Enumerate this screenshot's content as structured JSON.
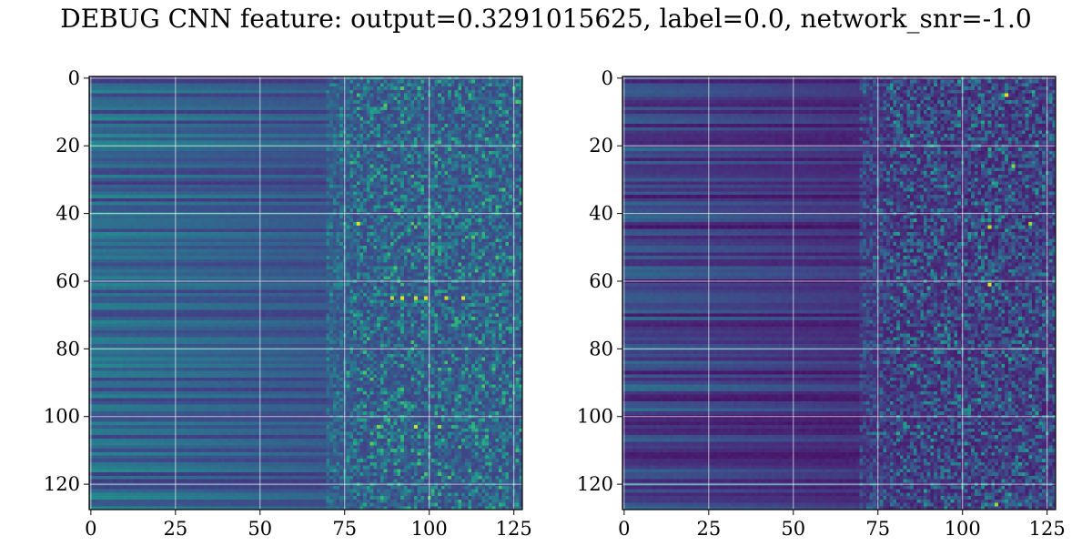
{
  "figure": {
    "title": "DEBUG CNN feature: output=0.3291015625, label=0.0, network_snr=-1.0"
  },
  "chart_data": [
    {
      "type": "heatmap",
      "panel": "left",
      "title": "",
      "xlabel": "",
      "ylabel": "",
      "rows": 128,
      "cols": 128,
      "xlim": [
        -0.5,
        127.5
      ],
      "ylim": [
        127.5,
        -0.5
      ],
      "x_ticks": [
        0,
        25,
        50,
        75,
        100,
        125
      ],
      "y_ticks": [
        0,
        20,
        40,
        60,
        80,
        100,
        120
      ],
      "x_tick_labels": [
        "0",
        "25",
        "50",
        "75",
        "100",
        "125"
      ],
      "y_tick_labels": [
        "0",
        "20",
        "40",
        "60",
        "80",
        "100",
        "120"
      ],
      "grid": true,
      "colormap": "viridis",
      "value_range": [
        0,
        1
      ],
      "description_of_values": "smooth row bands for x<70, noisy texture for x>=75",
      "hotspots": [
        {
          "x": 79,
          "y": 43,
          "value": 0.95
        },
        {
          "x": 89,
          "y": 65,
          "value": 0.9
        },
        {
          "x": 92,
          "y": 65,
          "value": 0.95
        },
        {
          "x": 96,
          "y": 65,
          "value": 0.92
        },
        {
          "x": 99,
          "y": 65,
          "value": 0.95
        },
        {
          "x": 105,
          "y": 65,
          "value": 0.9
        },
        {
          "x": 110,
          "y": 65,
          "value": 0.95
        },
        {
          "x": 96,
          "y": 103,
          "value": 0.92
        },
        {
          "x": 103,
          "y": 103,
          "value": 0.85
        },
        {
          "x": 85,
          "y": 103,
          "value": 0.8
        }
      ]
    },
    {
      "type": "heatmap",
      "panel": "right",
      "title": "",
      "xlabel": "",
      "ylabel": "",
      "rows": 128,
      "cols": 128,
      "xlim": [
        -0.5,
        127.5
      ],
      "ylim": [
        127.5,
        -0.5
      ],
      "x_ticks": [
        0,
        25,
        50,
        75,
        100,
        125
      ],
      "y_ticks": [
        0,
        20,
        40,
        60,
        80,
        100,
        120
      ],
      "x_tick_labels": [
        "0",
        "25",
        "50",
        "75",
        "100",
        "125"
      ],
      "y_tick_labels": [
        "0",
        "20",
        "40",
        "60",
        "80",
        "100",
        "120"
      ],
      "grid": true,
      "colormap": "viridis",
      "value_range": [
        0,
        1
      ],
      "description_of_values": "dark row bands for x<70, sparse noisy texture for x>=75",
      "hotspots": [
        {
          "x": 113,
          "y": 5,
          "value": 0.95
        },
        {
          "x": 108,
          "y": 44,
          "value": 0.9
        },
        {
          "x": 120,
          "y": 43,
          "value": 0.85
        },
        {
          "x": 108,
          "y": 61,
          "value": 0.95
        },
        {
          "x": 115,
          "y": 26,
          "value": 0.8
        },
        {
          "x": 110,
          "y": 126,
          "value": 0.85
        }
      ]
    }
  ]
}
